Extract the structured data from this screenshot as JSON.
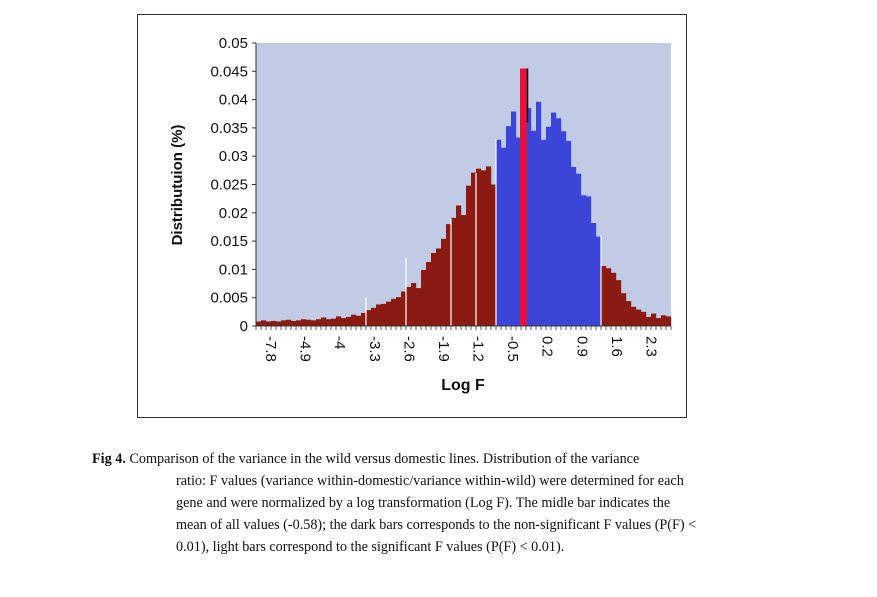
{
  "chart_data": {
    "type": "bar",
    "xlabel": "Log F",
    "ylabel": "Distributuion (%)",
    "ylim": [
      0,
      0.05
    ],
    "yticks": [
      "0",
      "0.005",
      "0.01",
      "0.015",
      "0.02",
      "0.025",
      "0.03",
      "0.035",
      "0.04",
      "0.045",
      "0.05"
    ],
    "xticks": [
      "-7.8",
      "-4.9",
      "-4",
      "-3.3",
      "-2.6",
      "-1.9",
      "-1.2",
      "-0.5",
      "0.2",
      "0.9",
      "1.6",
      "2.3"
    ],
    "grid": false,
    "background": "#c2cbe6",
    "colors": {
      "dark": "#8b1a12",
      "light": "#3b45d8",
      "middle": "#e8103c"
    },
    "middle_bar": {
      "x": -0.58,
      "label": "mean",
      "value": 0.0455
    },
    "series": [
      {
        "name": "dark",
        "values": [
          0.0008,
          0.001,
          0.0008,
          0.0009,
          0.0008,
          0.001,
          0.0011,
          0.0009,
          0.001,
          0.0012,
          0.0011,
          0.001,
          0.0012,
          0.0015,
          0.0012,
          0.0013,
          0.0017,
          0.0014,
          0.0016,
          0.002,
          0.0018,
          0.0023,
          0.0028,
          0.0032,
          0.0038,
          0.0039,
          0.0043,
          0.0048,
          0.0051,
          0.0061,
          0.0069,
          0.0076,
          0.0067,
          0.0099,
          0.0113,
          0.0129,
          0.0137,
          0.0154,
          0.018,
          0.0191,
          0.0213,
          0.0196,
          0.0248,
          0.0271,
          0.0278,
          0.0275,
          0.0282,
          0.025,
          0.0106,
          0.0102,
          0.0094,
          0.0081,
          0.0058,
          0.0044,
          0.0034,
          0.0029,
          0.0025,
          0.0016,
          0.0022,
          0.0014,
          0.0019,
          0.0017
        ]
      },
      {
        "name": "light",
        "values": [
          0.0329,
          0.0315,
          0.0353,
          0.0379,
          0.0333,
          0.0451,
          0.0385,
          0.0345,
          0.0396,
          0.0329,
          0.0352,
          0.0377,
          0.0367,
          0.0344,
          0.0327,
          0.0281,
          0.0269,
          0.0231,
          0.0229,
          0.0182,
          0.0158
        ]
      }
    ]
  },
  "caption": {
    "label": "Fig 4.",
    "first_line": "Comparison of the variance in the wild versus domestic lines.  Distribution of the variance",
    "rest_lines": [
      "ratio: F values (variance within-domestic/variance within-wild) were determined for each",
      "gene and were normalized by a log transformation  (Log F). The midle bar indicates the",
      "mean of all values  (-0.58); the dark bars corresponds to the non-significant F values (P(F) <",
      "0.01), light bars correspond to the significant F values (P(F) < 0.01)."
    ]
  }
}
